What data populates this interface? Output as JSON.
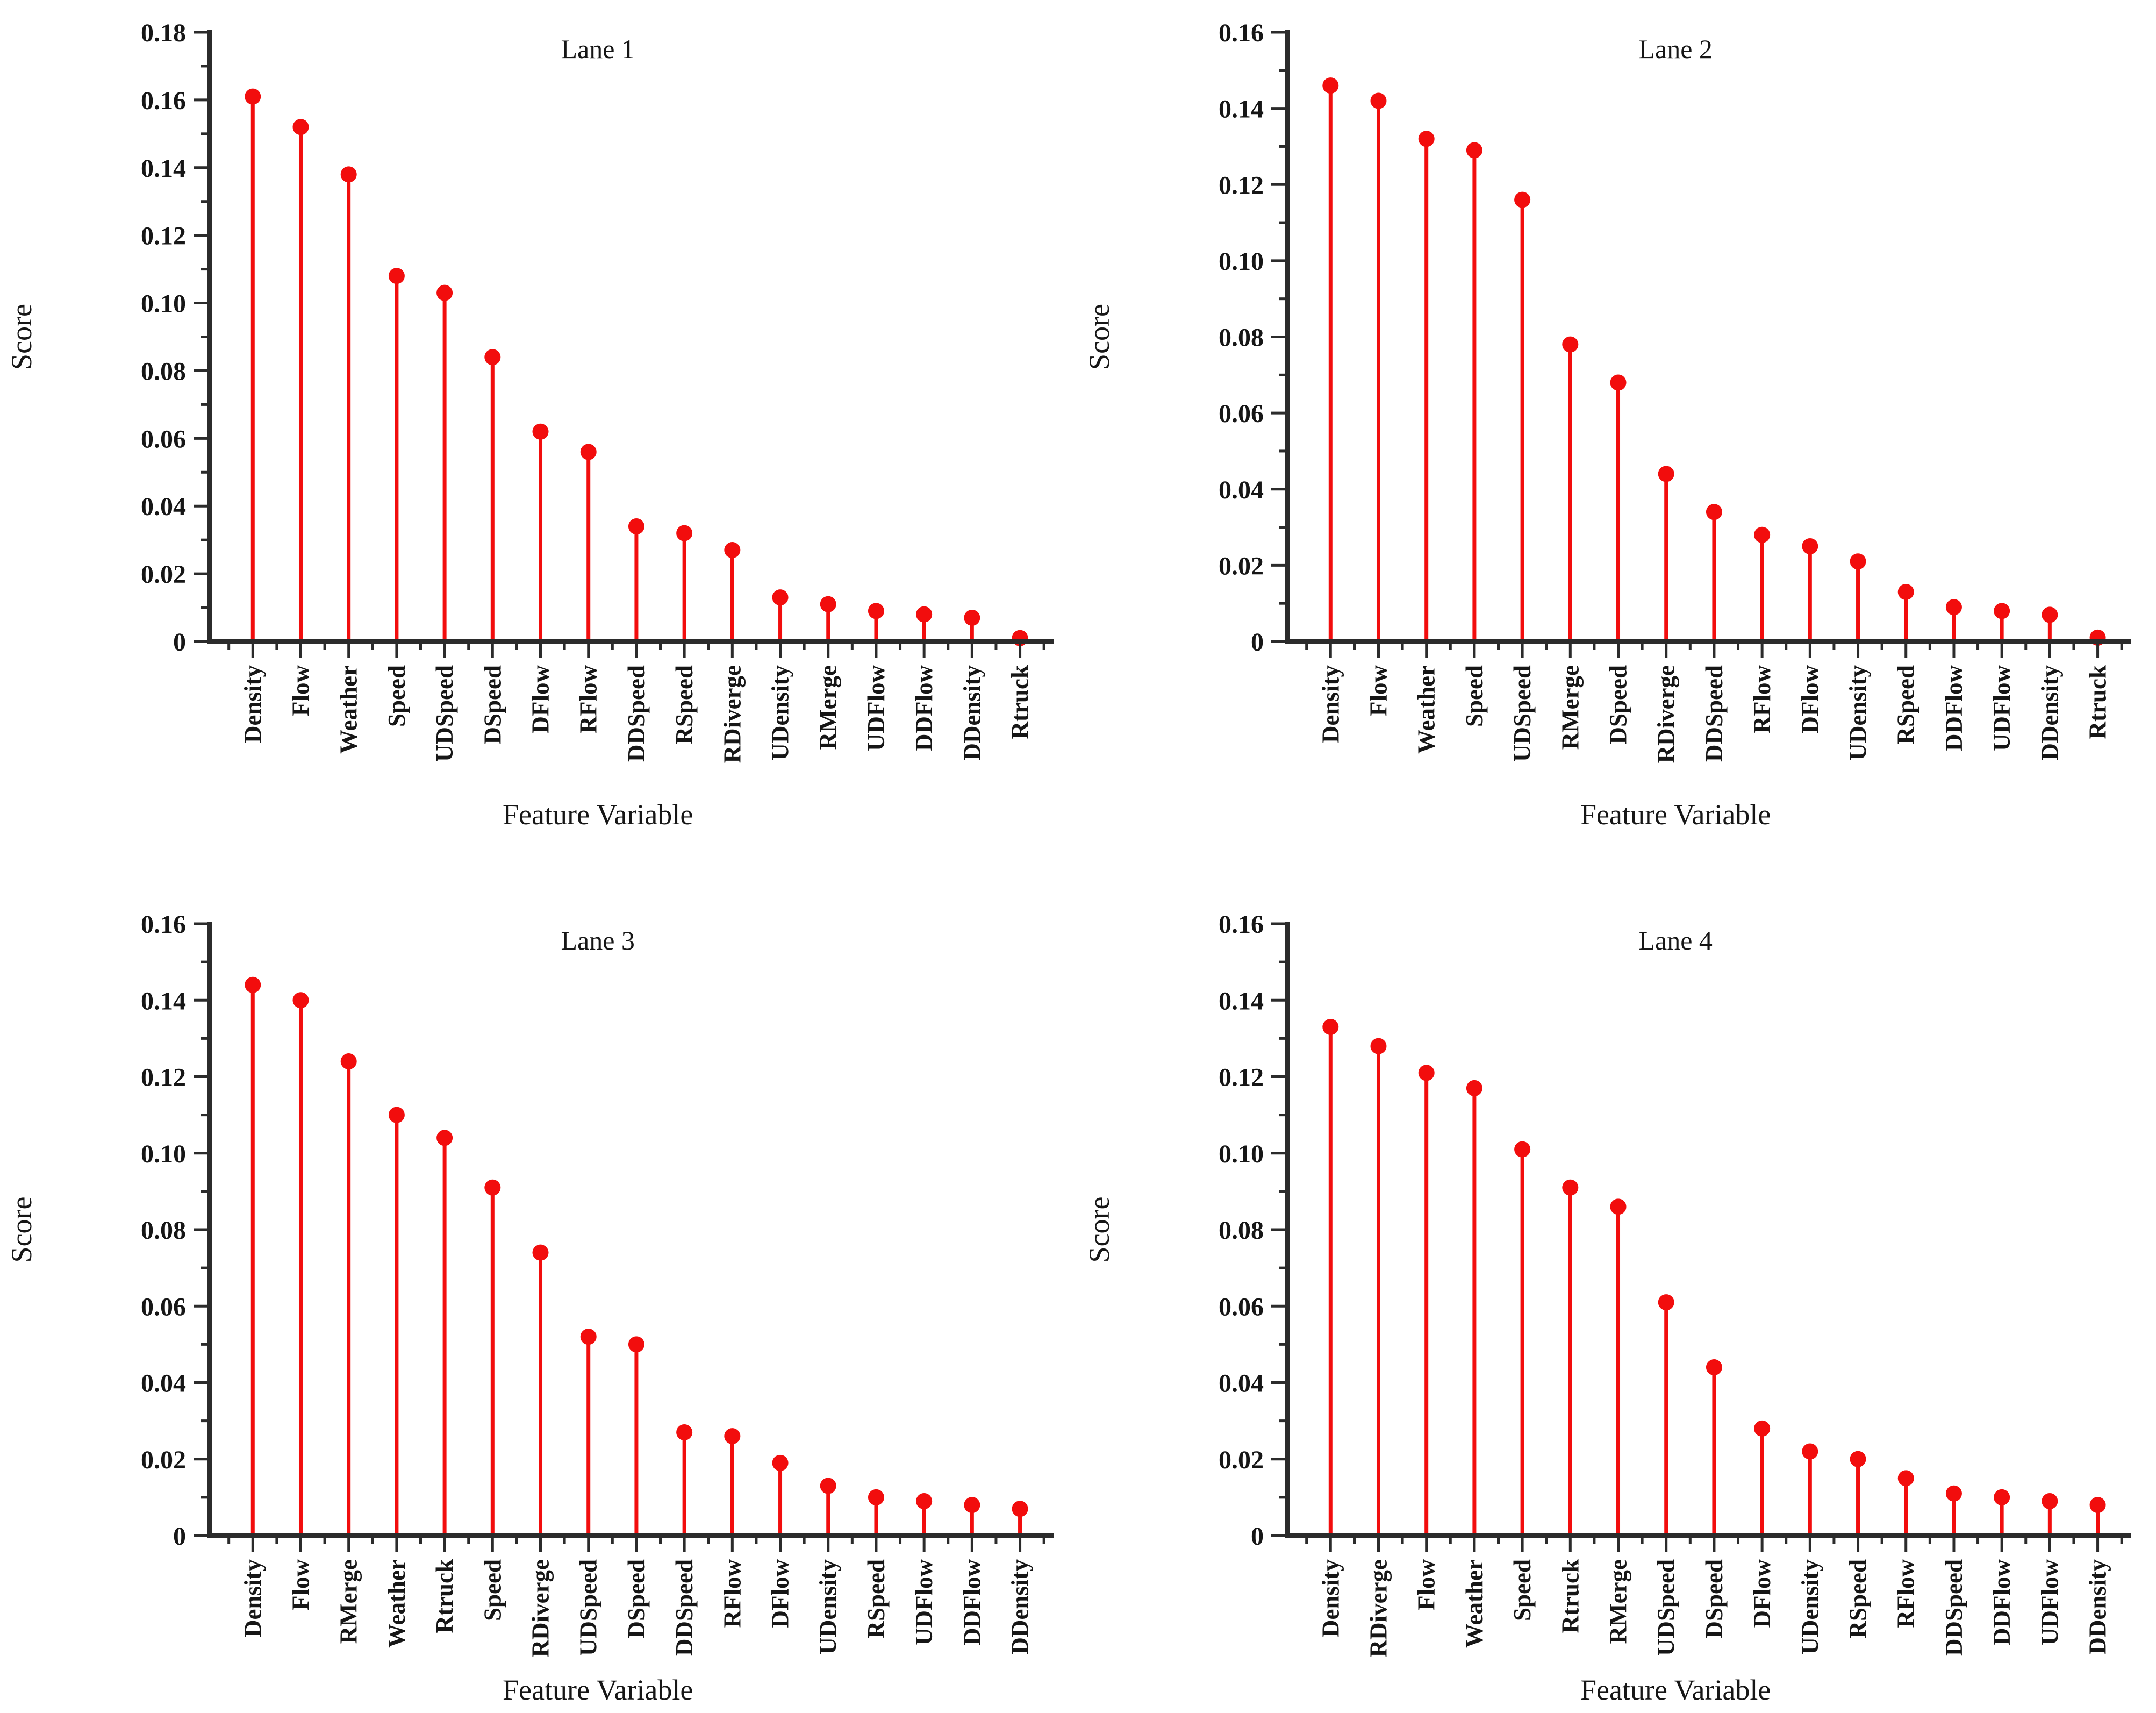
{
  "figure": {
    "stem_color": "#f20d0d",
    "marker_color": "#f20d0d",
    "axis_color": "#2b2b2b",
    "text_color": "#161616",
    "background_color": "#ffffff"
  },
  "chart_data": [
    {
      "type": "stem",
      "title": "Lane 1",
      "xlabel": "Feature Variable",
      "ylabel": "Score",
      "ylim": [
        0,
        0.18
      ],
      "ytick_step": 0.02,
      "grid": false,
      "legend": "none",
      "categories": [
        "Density",
        "Flow",
        "Weather",
        "Speed",
        "UDSpeed",
        "DSpeed",
        "DFlow",
        "RFlow",
        "DDSpeed",
        "RSpeed",
        "RDiverge",
        "UDensity",
        "RMerge",
        "UDFlow",
        "DDFlow",
        "DDensity",
        "Rtruck"
      ],
      "values": [
        0.161,
        0.152,
        0.138,
        0.108,
        0.103,
        0.084,
        0.062,
        0.056,
        0.034,
        0.032,
        0.027,
        0.013,
        0.011,
        0.009,
        0.008,
        0.007,
        0.001
      ]
    },
    {
      "type": "stem",
      "title": "Lane 2",
      "xlabel": "Feature Variable",
      "ylabel": "Score",
      "ylim": [
        0,
        0.16
      ],
      "ytick_step": 0.02,
      "grid": false,
      "legend": "none",
      "categories": [
        "Density",
        "Flow",
        "Weather",
        "Speed",
        "UDSpeed",
        "RMerge",
        "DSpeed",
        "RDiverge",
        "DDSpeed",
        "RFlow",
        "DFlow",
        "UDensity",
        "RSpeed",
        "DDFlow",
        "UDFlow",
        "DDensity",
        "Rtruck"
      ],
      "values": [
        0.146,
        0.142,
        0.132,
        0.129,
        0.116,
        0.078,
        0.068,
        0.044,
        0.034,
        0.028,
        0.025,
        0.021,
        0.013,
        0.009,
        0.008,
        0.007,
        0.001
      ]
    },
    {
      "type": "stem",
      "title": "Lane 3",
      "xlabel": "Feature Variable",
      "ylabel": "Score",
      "ylim": [
        0,
        0.16
      ],
      "ytick_step": 0.02,
      "grid": false,
      "legend": "none",
      "categories": [
        "Density",
        "Flow",
        "RMerge",
        "Weather",
        "Rtruck",
        "Speed",
        "RDiverge",
        "UDSpeed",
        "DSpeed",
        "DDSpeed",
        "RFlow",
        "DFlow",
        "UDensity",
        "RSpeed",
        "UDFlow",
        "DDFlow",
        "DDensity"
      ],
      "values": [
        0.144,
        0.14,
        0.124,
        0.11,
        0.104,
        0.091,
        0.074,
        0.052,
        0.05,
        0.027,
        0.026,
        0.019,
        0.013,
        0.01,
        0.009,
        0.008,
        0.007
      ]
    },
    {
      "type": "stem",
      "title": "Lane 4",
      "xlabel": "Feature Variable",
      "ylabel": "Score",
      "ylim": [
        0,
        0.16
      ],
      "ytick_step": 0.02,
      "grid": false,
      "legend": "none",
      "categories": [
        "Density",
        "RDiverge",
        "Flow",
        "Weather",
        "Speed",
        "Rtruck",
        "RMerge",
        "UDSpeed",
        "DSpeed",
        "DFlow",
        "UDensity",
        "RSpeed",
        "RFlow",
        "DDSpeed",
        "DDFlow",
        "UDFlow",
        "DDensity"
      ],
      "values": [
        0.133,
        0.128,
        0.121,
        0.117,
        0.101,
        0.091,
        0.086,
        0.061,
        0.044,
        0.028,
        0.022,
        0.02,
        0.015,
        0.011,
        0.01,
        0.009,
        0.008
      ]
    }
  ]
}
